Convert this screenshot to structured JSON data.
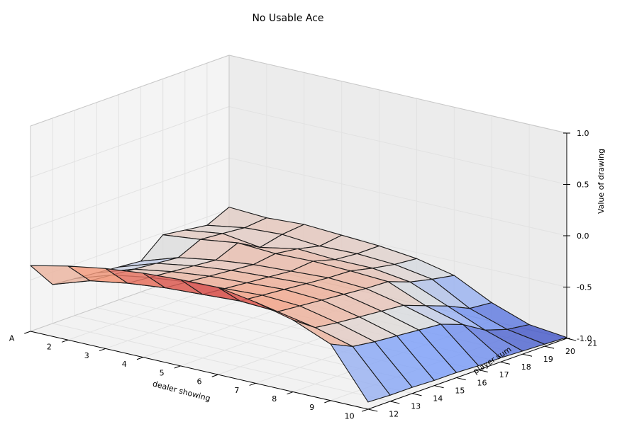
{
  "chart_data": {
    "type": "surface",
    "title": "No Usable Ace",
    "xlabel": "dealer showing",
    "ylabel": "player sum",
    "zlabel": "Value of drawing",
    "x_ticks": [
      "A",
      "2",
      "3",
      "4",
      "5",
      "6",
      "7",
      "8",
      "9",
      "10"
    ],
    "y_ticks": [
      "12",
      "13",
      "14",
      "15",
      "16",
      "17",
      "18",
      "19",
      "20",
      "21"
    ],
    "z_ticks": [
      "-1.0",
      "-0.5",
      "0.0",
      "0.5",
      "1.0"
    ],
    "zlim": [
      -1,
      1
    ],
    "colormap": "coolwarm",
    "grid": true,
    "x": [
      1,
      2,
      3,
      4,
      5,
      6,
      7,
      8,
      9,
      10
    ],
    "y": [
      12,
      13,
      14,
      15,
      16,
      17,
      18,
      19,
      20,
      21
    ],
    "z": [
      [
        -0.36,
        -0.28,
        -0.22,
        -0.18,
        -0.16,
        -0.15,
        -0.21,
        -0.3,
        -0.45,
        -0.93
      ],
      [
        -0.62,
        -0.5,
        -0.44,
        -0.4,
        -0.38,
        -0.36,
        -0.38,
        -0.45,
        -0.55,
        -0.94
      ],
      [
        -0.64,
        -0.52,
        -0.46,
        -0.42,
        -0.4,
        -0.38,
        -0.4,
        -0.48,
        -0.58,
        -0.94
      ],
      [
        -0.66,
        -0.54,
        -0.48,
        -0.44,
        -0.42,
        -0.4,
        -0.42,
        -0.5,
        -0.6,
        -0.95
      ],
      [
        -0.68,
        -0.56,
        -0.5,
        -0.46,
        -0.44,
        -0.42,
        -0.44,
        -0.52,
        -0.62,
        -0.95
      ],
      [
        -0.7,
        -0.58,
        -0.52,
        -0.48,
        -0.46,
        -0.44,
        -0.46,
        -0.54,
        -0.64,
        -0.96
      ],
      [
        -0.52,
        -0.48,
        -0.43,
        -0.45,
        -0.44,
        -0.45,
        -0.47,
        -0.62,
        -0.72,
        -0.96
      ],
      [
        -0.55,
        -0.5,
        -0.55,
        -0.48,
        -0.5,
        -0.5,
        -0.55,
        -0.7,
        -0.85,
        -0.97
      ],
      [
        -0.58,
        -0.52,
        -0.5,
        -0.53,
        -0.52,
        -0.54,
        -0.6,
        -0.8,
        -0.92,
        -0.98
      ],
      [
        -0.48,
        -0.5,
        -0.48,
        -0.5,
        -0.52,
        -0.56,
        -0.64,
        -0.82,
        -0.95,
        -0.99
      ]
    ]
  }
}
